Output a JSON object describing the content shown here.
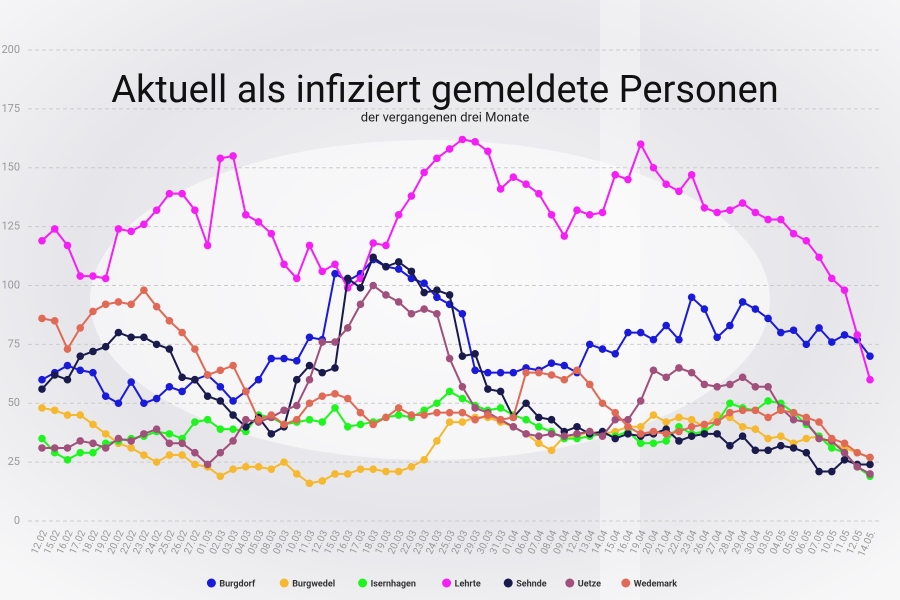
{
  "chart_data": {
    "type": "line",
    "title": "Aktuell als infiziert gemeldete Personen",
    "subtitle": "der vergangenen drei Monate",
    "categories": [
      "12.02",
      "15.02",
      "16.02",
      "17.02",
      "18.02",
      "19.02",
      "20.02",
      "22.02",
      "23.02",
      "24.02",
      "25.02",
      "26.02",
      "27.02",
      "01.03",
      "02.03",
      "03.03",
      "04.03",
      "05.03",
      "08.03",
      "09.03",
      "10.03",
      "11.03",
      "12.03",
      "15.03",
      "16.03",
      "17.03",
      "18.03",
      "19.03",
      "20.03",
      "22.03",
      "23.03",
      "24.03",
      "25.03",
      "26.03",
      "29.03",
      "30.03",
      "31.03",
      "01.04",
      "06.04",
      "07.04",
      "08.04",
      "09.04",
      "12.04",
      "13.04",
      "14.04",
      "15.04",
      "16.04",
      "19.04",
      "20.04",
      "21.04",
      "22.04",
      "23.04",
      "26.04",
      "27.04",
      "28.04",
      "29.04",
      "30.04",
      "03.05",
      "04.05",
      "05.05",
      "06.05",
      "07.05",
      "10.05",
      "11.05",
      "12.05",
      "14.05."
    ],
    "series": [
      {
        "name": "Burgdorf",
        "color": "#1a1adb",
        "values": [
          60,
          63,
          66,
          64,
          63,
          53,
          50,
          59,
          50,
          52,
          57,
          55,
          60,
          62,
          57,
          51,
          55,
          60,
          69,
          69,
          68,
          78,
          77,
          105,
          102,
          105,
          111,
          108,
          107,
          103,
          101,
          95,
          92,
          88,
          64,
          63,
          63,
          63,
          65,
          64,
          67,
          66,
          63,
          75,
          73,
          71,
          80,
          80,
          77,
          83,
          77,
          95,
          90,
          78,
          83,
          93,
          90,
          86,
          80,
          81,
          75,
          82,
          76,
          79,
          77,
          70
        ]
      },
      {
        "name": "Burgwedel",
        "color": "#f5b82e",
        "values": [
          48,
          47,
          45,
          45,
          41,
          37,
          33,
          31,
          28,
          25,
          28,
          28,
          24,
          23,
          19,
          22,
          23,
          23,
          22,
          25,
          20,
          16,
          17,
          20,
          20,
          22,
          22,
          21,
          21,
          23,
          26,
          34,
          42,
          42,
          44,
          44,
          42,
          40,
          37,
          33,
          30,
          36,
          36,
          38,
          37,
          38,
          40,
          40,
          45,
          42,
          44,
          43,
          40,
          45,
          44,
          40,
          39,
          35,
          36,
          33,
          35,
          36,
          33,
          31,
          29,
          27
        ]
      },
      {
        "name": "Isernhagen",
        "color": "#1ef51e",
        "values": [
          35,
          29,
          26,
          29,
          29,
          33,
          34,
          35,
          36,
          38,
          37,
          35,
          42,
          43,
          39,
          39,
          38,
          45,
          44,
          41,
          42,
          43,
          42,
          48,
          40,
          41,
          42,
          44,
          45,
          44,
          47,
          50,
          55,
          52,
          49,
          47,
          48,
          45,
          43,
          40,
          38,
          35,
          35,
          36,
          37,
          36,
          38,
          33,
          33,
          34,
          40,
          37,
          38,
          42,
          50,
          48,
          47,
          51,
          50,
          46,
          41,
          36,
          31,
          29,
          23,
          19
        ]
      },
      {
        "name": "Lehrte",
        "color": "#f51ef5",
        "values": [
          119,
          124,
          117,
          104,
          104,
          103,
          124,
          123,
          126,
          132,
          139,
          139,
          132,
          117,
          154,
          155,
          130,
          127,
          122,
          109,
          103,
          117,
          106,
          109,
          99,
          103,
          118,
          117,
          130,
          138,
          148,
          154,
          158,
          162,
          161,
          157,
          141,
          146,
          143,
          139,
          130,
          121,
          132,
          130,
          131,
          147,
          145,
          160,
          150,
          143,
          140,
          147,
          133,
          131,
          132,
          135,
          131,
          128,
          128,
          122,
          119,
          112,
          103,
          98,
          79,
          60
        ]
      },
      {
        "name": "Sehnde",
        "color": "#1a1a4d",
        "values": [
          56,
          62,
          60,
          70,
          72,
          74,
          80,
          78,
          78,
          75,
          73,
          61,
          60,
          53,
          51,
          45,
          40,
          44,
          37,
          40,
          60,
          66,
          63,
          65,
          103,
          99,
          112,
          108,
          110,
          106,
          97,
          98,
          96,
          70,
          71,
          56,
          55,
          44,
          50,
          44,
          43,
          38,
          40,
          37,
          38,
          35,
          37,
          36,
          37,
          39,
          34,
          36,
          37,
          37,
          32,
          36,
          30,
          30,
          32,
          31,
          29,
          21,
          21,
          26,
          24,
          24
        ]
      },
      {
        "name": "Uetze",
        "color": "#a0507a",
        "values": [
          31,
          31,
          31,
          34,
          33,
          31,
          35,
          34,
          37,
          39,
          33,
          33,
          29,
          24,
          29,
          34,
          43,
          42,
          44,
          47,
          49,
          60,
          76,
          76,
          82,
          92,
          100,
          96,
          93,
          88,
          90,
          88,
          69,
          57,
          48,
          46,
          43,
          40,
          37,
          36,
          37,
          36,
          37,
          38,
          36,
          43,
          43,
          51,
          64,
          61,
          65,
          63,
          58,
          57,
          58,
          61,
          57,
          57,
          48,
          43,
          42,
          35,
          34,
          29,
          23,
          20
        ]
      },
      {
        "name": "Wedemark",
        "color": "#e06a55",
        "values": [
          86,
          85,
          73,
          82,
          89,
          92,
          93,
          92,
          98,
          91,
          85,
          80,
          73,
          62,
          64,
          66,
          55,
          43,
          45,
          41,
          43,
          50,
          53,
          54,
          52,
          46,
          41,
          44,
          48,
          45,
          45,
          46,
          46,
          46,
          43,
          45,
          43,
          44,
          63,
          63,
          62,
          60,
          64,
          58,
          50,
          46,
          40,
          37,
          38,
          37,
          38,
          40,
          41,
          42,
          46,
          47,
          47,
          44,
          47,
          46,
          44,
          42,
          35,
          33,
          29,
          27
        ]
      }
    ],
    "ylim": [
      0,
      200
    ],
    "yticks": [
      0,
      25,
      50,
      75,
      100,
      125,
      150,
      175,
      200
    ],
    "grid": true,
    "legend": "bottom"
  }
}
